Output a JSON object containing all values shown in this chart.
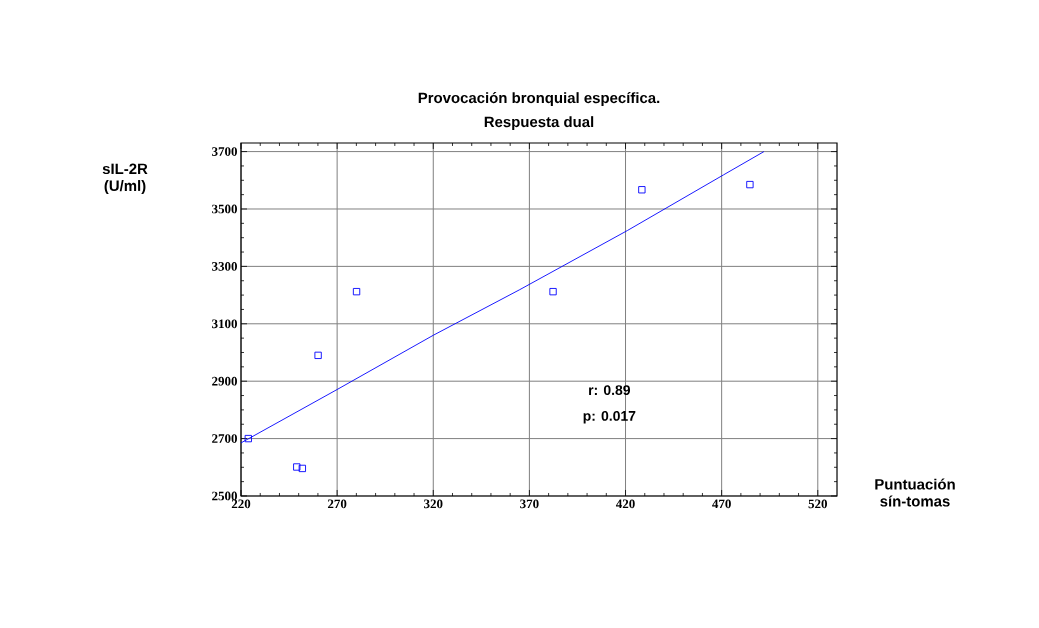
{
  "chart_data": {
    "type": "scatter",
    "title": "Provocación bronquial específica.",
    "subtitle": "Respuesta dual",
    "xlabel": "Puntuación sín-tomas",
    "ylabel": "sIL-2R (U/ml)",
    "xlim": [
      220,
      530
    ],
    "ylim": [
      2500,
      3730
    ],
    "xticks": [
      220,
      270,
      320,
      370,
      420,
      470,
      520
    ],
    "yticks": [
      2500,
      2700,
      2900,
      3100,
      3300,
      3500,
      3700
    ],
    "grid": true,
    "marker": "square",
    "series": [
      {
        "color": "#0000ff",
        "x": [
          223.8,
          249,
          251.9,
          260.1,
          280.1,
          382.3,
          428.5,
          484.7
        ],
        "values": [
          2700,
          2601,
          2596,
          2990,
          3212,
          3212,
          3567,
          3585
        ]
      },
      {
        "type": "line",
        "marker": "none",
        "color": "#0000ff",
        "x": [
          220,
          270,
          320,
          365,
          421,
          471,
          492
        ],
        "values": [
          2685,
          2871,
          3060,
          3219,
          3425,
          3619,
          3700
        ]
      }
    ],
    "annotations": [
      "r: 0.89",
      "p: 0.017"
    ]
  }
}
